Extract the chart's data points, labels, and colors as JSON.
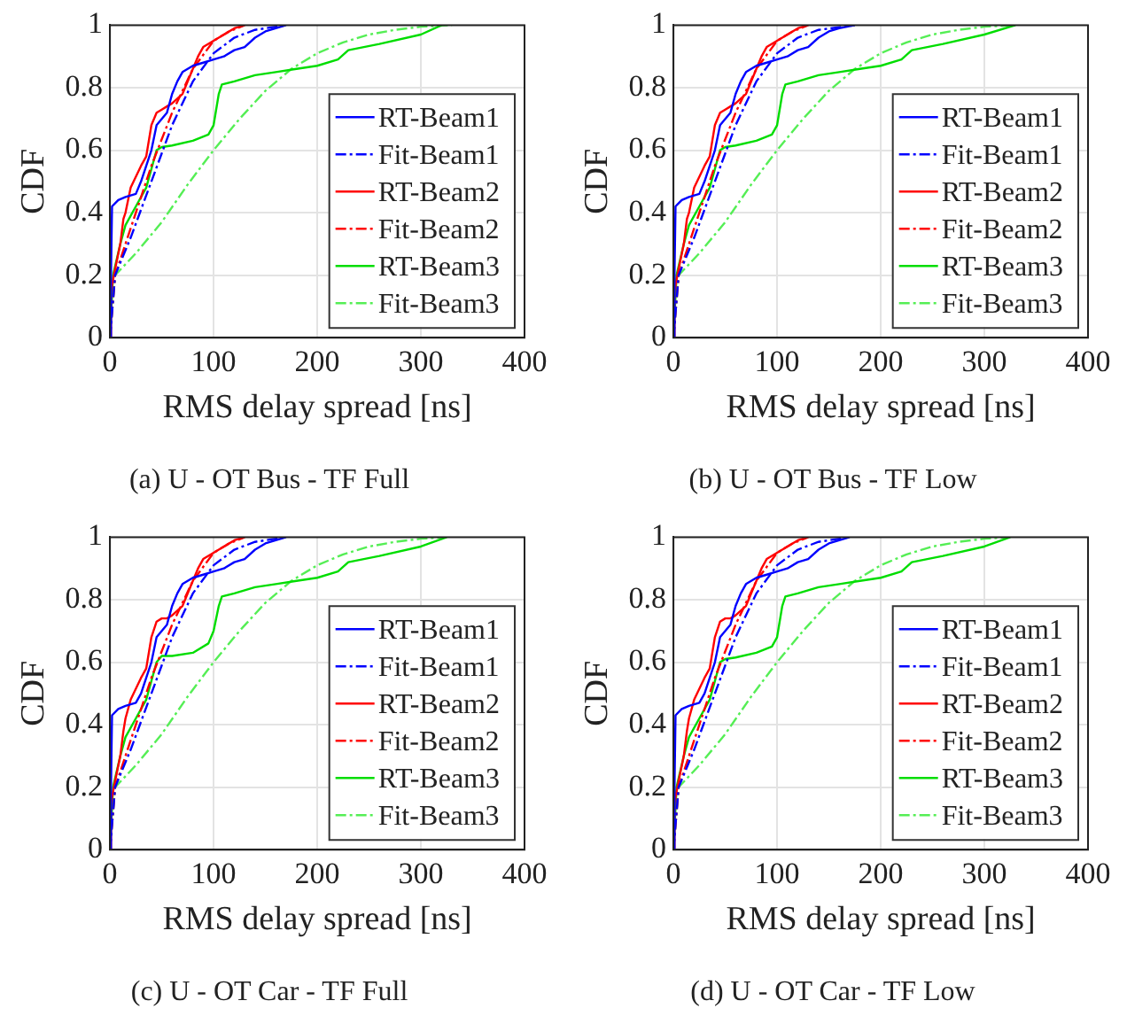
{
  "chart_data": [
    {
      "type": "line",
      "title": "(a) U - OT Bus - TF Full",
      "xlabel": "RMS delay spread [ns]",
      "ylabel": "CDF",
      "xlim": [
        0,
        400
      ],
      "xticks": [
        0,
        100,
        200,
        300,
        400
      ],
      "ylim": [
        0,
        1
      ],
      "yticks": [
        0,
        0.2,
        0.4,
        0.6,
        0.8,
        1
      ],
      "grid": true,
      "legend": "bottom right",
      "marker": "none",
      "series": [
        {
          "name": "RT-Beam1",
          "color": "#0000ff",
          "line_style": "solid",
          "x": [
            0,
            1,
            2,
            8,
            15,
            25,
            30,
            40,
            45,
            50,
            55,
            60,
            65,
            70,
            80,
            90,
            100,
            110,
            120,
            130,
            140,
            150,
            160,
            170
          ],
          "values": [
            0,
            0.2,
            0.42,
            0.44,
            0.45,
            0.46,
            0.5,
            0.6,
            0.68,
            0.7,
            0.72,
            0.78,
            0.82,
            0.85,
            0.87,
            0.88,
            0.89,
            0.9,
            0.92,
            0.93,
            0.96,
            0.98,
            0.99,
            1
          ]
        },
        {
          "name": "Fit-Beam1",
          "color": "#0000ff",
          "line_style": "dashed",
          "x": [
            0,
            5,
            20,
            40,
            60,
            80,
            100,
            120,
            140,
            170
          ],
          "values": [
            0,
            0.2,
            0.32,
            0.5,
            0.68,
            0.82,
            0.91,
            0.96,
            0.985,
            1
          ]
        },
        {
          "name": "RT-Beam2",
          "color": "#ff0000",
          "line_style": "solid",
          "x": [
            0,
            1,
            5,
            10,
            13,
            15,
            20,
            30,
            35,
            40,
            45,
            50,
            55,
            60,
            70,
            80,
            85,
            90,
            100,
            110,
            120,
            130
          ],
          "values": [
            0,
            0.15,
            0.22,
            0.3,
            0.38,
            0.4,
            0.48,
            0.55,
            0.58,
            0.68,
            0.72,
            0.73,
            0.74,
            0.75,
            0.78,
            0.86,
            0.9,
            0.93,
            0.95,
            0.97,
            0.99,
            1
          ]
        },
        {
          "name": "Fit-Beam2",
          "color": "#ff0000",
          "line_style": "dashed",
          "x": [
            0,
            5,
            20,
            40,
            60,
            80,
            100,
            115,
            130
          ],
          "values": [
            0,
            0.2,
            0.35,
            0.55,
            0.72,
            0.86,
            0.95,
            0.98,
            1
          ]
        },
        {
          "name": "RT-Beam3",
          "color": "#00dd00",
          "line_style": "solid",
          "x": [
            0,
            3,
            10,
            15,
            25,
            35,
            45,
            50,
            60,
            80,
            95,
            100,
            105,
            108,
            120,
            140,
            160,
            180,
            200,
            220,
            230,
            260,
            300,
            320
          ],
          "values": [
            0,
            0.2,
            0.3,
            0.36,
            0.42,
            0.48,
            0.6,
            0.61,
            0.615,
            0.63,
            0.65,
            0.68,
            0.78,
            0.81,
            0.82,
            0.84,
            0.85,
            0.86,
            0.87,
            0.89,
            0.92,
            0.94,
            0.97,
            1
          ]
        },
        {
          "name": "Fit-Beam3",
          "color": "#55ee55",
          "line_style": "dashed",
          "x": [
            0,
            5,
            25,
            50,
            75,
            100,
            125,
            150,
            175,
            200,
            225,
            250,
            275,
            300,
            330
          ],
          "values": [
            0,
            0.2,
            0.27,
            0.37,
            0.49,
            0.6,
            0.7,
            0.79,
            0.86,
            0.91,
            0.945,
            0.97,
            0.985,
            0.995,
            1
          ]
        }
      ]
    },
    {
      "type": "line",
      "title": "(b) U - OT Bus - TF Low",
      "xlabel": "RMS delay spread [ns]",
      "ylabel": "CDF",
      "xlim": [
        0,
        400
      ],
      "xticks": [
        0,
        100,
        200,
        300,
        400
      ],
      "ylim": [
        0,
        1
      ],
      "yticks": [
        0,
        0.2,
        0.4,
        0.6,
        0.8,
        1
      ],
      "grid": true,
      "legend": "bottom right",
      "marker": "none",
      "series": [
        {
          "name": "RT-Beam1",
          "color": "#0000ff",
          "line_style": "solid",
          "x": [
            0,
            1,
            2,
            8,
            15,
            25,
            30,
            40,
            45,
            50,
            55,
            60,
            65,
            70,
            80,
            90,
            100,
            110,
            120,
            130,
            140,
            150,
            160,
            175
          ],
          "values": [
            0,
            0.2,
            0.42,
            0.44,
            0.45,
            0.46,
            0.5,
            0.6,
            0.68,
            0.7,
            0.72,
            0.78,
            0.82,
            0.85,
            0.87,
            0.88,
            0.89,
            0.9,
            0.92,
            0.93,
            0.96,
            0.98,
            0.99,
            1
          ]
        },
        {
          "name": "Fit-Beam1",
          "color": "#0000ff",
          "line_style": "dashed",
          "x": [
            0,
            5,
            20,
            40,
            60,
            80,
            100,
            120,
            140,
            175
          ],
          "values": [
            0,
            0.2,
            0.32,
            0.5,
            0.68,
            0.82,
            0.91,
            0.96,
            0.985,
            1
          ]
        },
        {
          "name": "RT-Beam2",
          "color": "#ff0000",
          "line_style": "solid",
          "x": [
            0,
            1,
            5,
            10,
            13,
            15,
            20,
            30,
            35,
            40,
            45,
            50,
            55,
            60,
            70,
            80,
            85,
            90,
            100,
            110,
            120,
            130
          ],
          "values": [
            0,
            0.15,
            0.22,
            0.3,
            0.38,
            0.4,
            0.48,
            0.55,
            0.58,
            0.68,
            0.72,
            0.73,
            0.74,
            0.75,
            0.78,
            0.86,
            0.9,
            0.93,
            0.95,
            0.97,
            0.99,
            1
          ]
        },
        {
          "name": "Fit-Beam2",
          "color": "#ff0000",
          "line_style": "dashed",
          "x": [
            0,
            5,
            20,
            40,
            60,
            80,
            100,
            115,
            130
          ],
          "values": [
            0,
            0.2,
            0.35,
            0.55,
            0.72,
            0.86,
            0.95,
            0.98,
            1
          ]
        },
        {
          "name": "RT-Beam3",
          "color": "#00dd00",
          "line_style": "solid",
          "x": [
            0,
            3,
            10,
            15,
            25,
            35,
            45,
            50,
            60,
            80,
            95,
            100,
            105,
            108,
            120,
            140,
            160,
            180,
            200,
            220,
            230,
            260,
            300,
            330
          ],
          "values": [
            0,
            0.2,
            0.3,
            0.36,
            0.42,
            0.48,
            0.6,
            0.61,
            0.615,
            0.63,
            0.65,
            0.68,
            0.78,
            0.81,
            0.82,
            0.84,
            0.85,
            0.86,
            0.87,
            0.89,
            0.92,
            0.94,
            0.97,
            1
          ]
        },
        {
          "name": "Fit-Beam3",
          "color": "#55ee55",
          "line_style": "dashed",
          "x": [
            0,
            5,
            25,
            50,
            75,
            100,
            125,
            150,
            175,
            200,
            225,
            250,
            275,
            300,
            330
          ],
          "values": [
            0,
            0.2,
            0.27,
            0.37,
            0.49,
            0.6,
            0.7,
            0.79,
            0.86,
            0.91,
            0.945,
            0.97,
            0.985,
            0.995,
            1
          ]
        }
      ]
    },
    {
      "type": "line",
      "title": "(c) U - OT Car - TF Full",
      "xlabel": "RMS delay spread [ns]",
      "ylabel": "CDF",
      "xlim": [
        0,
        400
      ],
      "xticks": [
        0,
        100,
        200,
        300,
        400
      ],
      "ylim": [
        0,
        1
      ],
      "yticks": [
        0,
        0.2,
        0.4,
        0.6,
        0.8,
        1
      ],
      "grid": true,
      "legend": "bottom right",
      "marker": "none",
      "series": [
        {
          "name": "RT-Beam1",
          "color": "#0000ff",
          "line_style": "solid",
          "x": [
            0,
            1,
            2,
            8,
            15,
            25,
            30,
            40,
            45,
            50,
            55,
            60,
            65,
            70,
            80,
            90,
            100,
            110,
            120,
            130,
            140,
            150,
            160,
            170
          ],
          "values": [
            0,
            0.2,
            0.43,
            0.45,
            0.46,
            0.47,
            0.5,
            0.6,
            0.68,
            0.7,
            0.72,
            0.78,
            0.82,
            0.85,
            0.87,
            0.88,
            0.89,
            0.9,
            0.92,
            0.93,
            0.96,
            0.98,
            0.99,
            1
          ]
        },
        {
          "name": "Fit-Beam1",
          "color": "#0000ff",
          "line_style": "dashed",
          "x": [
            0,
            5,
            20,
            40,
            60,
            80,
            100,
            120,
            140,
            170
          ],
          "values": [
            0,
            0.2,
            0.32,
            0.5,
            0.68,
            0.82,
            0.91,
            0.96,
            0.985,
            1
          ]
        },
        {
          "name": "RT-Beam2",
          "color": "#ff0000",
          "line_style": "solid",
          "x": [
            0,
            1,
            5,
            10,
            13,
            15,
            20,
            30,
            35,
            40,
            45,
            50,
            55,
            60,
            70,
            80,
            85,
            90,
            100,
            110,
            120,
            130
          ],
          "values": [
            0,
            0.15,
            0.22,
            0.3,
            0.38,
            0.42,
            0.48,
            0.55,
            0.58,
            0.68,
            0.73,
            0.74,
            0.74,
            0.75,
            0.78,
            0.86,
            0.9,
            0.93,
            0.95,
            0.97,
            0.99,
            1
          ]
        },
        {
          "name": "Fit-Beam2",
          "color": "#ff0000",
          "line_style": "dashed",
          "x": [
            0,
            5,
            20,
            40,
            60,
            80,
            100,
            115,
            130
          ],
          "values": [
            0,
            0.2,
            0.35,
            0.55,
            0.72,
            0.86,
            0.95,
            0.98,
            1
          ]
        },
        {
          "name": "RT-Beam3",
          "color": "#00dd00",
          "line_style": "solid",
          "x": [
            0,
            3,
            10,
            15,
            25,
            35,
            45,
            50,
            60,
            80,
            95,
            100,
            105,
            108,
            120,
            140,
            160,
            180,
            200,
            220,
            230,
            260,
            300,
            325
          ],
          "values": [
            0,
            0.2,
            0.3,
            0.36,
            0.42,
            0.48,
            0.6,
            0.62,
            0.62,
            0.63,
            0.66,
            0.7,
            0.78,
            0.81,
            0.82,
            0.84,
            0.85,
            0.86,
            0.87,
            0.89,
            0.92,
            0.94,
            0.97,
            1
          ]
        },
        {
          "name": "Fit-Beam3",
          "color": "#55ee55",
          "line_style": "dashed",
          "x": [
            0,
            5,
            25,
            50,
            75,
            100,
            125,
            150,
            175,
            200,
            225,
            250,
            275,
            300,
            325
          ],
          "values": [
            0,
            0.2,
            0.27,
            0.37,
            0.49,
            0.6,
            0.7,
            0.79,
            0.86,
            0.91,
            0.945,
            0.97,
            0.985,
            0.995,
            1
          ]
        }
      ]
    },
    {
      "type": "line",
      "title": "(d) U - OT Car - TF Low",
      "xlabel": "RMS delay spread [ns]",
      "ylabel": "CDF",
      "xlim": [
        0,
        400
      ],
      "xticks": [
        0,
        100,
        200,
        300,
        400
      ],
      "ylim": [
        0,
        1
      ],
      "yticks": [
        0,
        0.2,
        0.4,
        0.6,
        0.8,
        1
      ],
      "grid": true,
      "legend": "bottom right",
      "marker": "none",
      "series": [
        {
          "name": "RT-Beam1",
          "color": "#0000ff",
          "line_style": "solid",
          "x": [
            0,
            1,
            2,
            8,
            15,
            25,
            30,
            40,
            45,
            50,
            55,
            60,
            65,
            70,
            80,
            90,
            100,
            110,
            120,
            130,
            140,
            150,
            160,
            170
          ],
          "values": [
            0,
            0.2,
            0.43,
            0.45,
            0.46,
            0.47,
            0.5,
            0.6,
            0.68,
            0.7,
            0.72,
            0.78,
            0.82,
            0.85,
            0.87,
            0.88,
            0.89,
            0.9,
            0.92,
            0.93,
            0.96,
            0.98,
            0.99,
            1
          ]
        },
        {
          "name": "Fit-Beam1",
          "color": "#0000ff",
          "line_style": "dashed",
          "x": [
            0,
            5,
            20,
            40,
            60,
            80,
            100,
            120,
            140,
            170
          ],
          "values": [
            0,
            0.2,
            0.32,
            0.5,
            0.68,
            0.82,
            0.91,
            0.96,
            0.985,
            1
          ]
        },
        {
          "name": "RT-Beam2",
          "color": "#ff0000",
          "line_style": "solid",
          "x": [
            0,
            1,
            5,
            10,
            13,
            15,
            20,
            30,
            35,
            40,
            45,
            50,
            55,
            60,
            70,
            80,
            85,
            90,
            100,
            110,
            120,
            130
          ],
          "values": [
            0,
            0.15,
            0.22,
            0.3,
            0.38,
            0.42,
            0.48,
            0.55,
            0.58,
            0.68,
            0.73,
            0.74,
            0.74,
            0.75,
            0.78,
            0.86,
            0.9,
            0.93,
            0.95,
            0.97,
            0.99,
            1
          ]
        },
        {
          "name": "Fit-Beam2",
          "color": "#ff0000",
          "line_style": "dashed",
          "x": [
            0,
            5,
            20,
            40,
            60,
            80,
            100,
            115,
            130
          ],
          "values": [
            0,
            0.2,
            0.35,
            0.55,
            0.72,
            0.86,
            0.95,
            0.98,
            1
          ]
        },
        {
          "name": "RT-Beam3",
          "color": "#00dd00",
          "line_style": "solid",
          "x": [
            0,
            3,
            10,
            15,
            25,
            35,
            45,
            50,
            60,
            80,
            95,
            100,
            105,
            108,
            120,
            140,
            160,
            180,
            200,
            220,
            230,
            260,
            300,
            325
          ],
          "values": [
            0,
            0.2,
            0.3,
            0.36,
            0.42,
            0.48,
            0.6,
            0.61,
            0.615,
            0.63,
            0.65,
            0.68,
            0.78,
            0.81,
            0.82,
            0.84,
            0.85,
            0.86,
            0.87,
            0.89,
            0.92,
            0.94,
            0.97,
            1
          ]
        },
        {
          "name": "Fit-Beam3",
          "color": "#55ee55",
          "line_style": "dashed",
          "x": [
            0,
            5,
            25,
            50,
            75,
            100,
            125,
            150,
            175,
            200,
            225,
            250,
            275,
            300,
            325
          ],
          "values": [
            0,
            0.2,
            0.27,
            0.37,
            0.49,
            0.6,
            0.7,
            0.79,
            0.86,
            0.91,
            0.945,
            0.97,
            0.985,
            0.995,
            1
          ]
        }
      ]
    }
  ]
}
